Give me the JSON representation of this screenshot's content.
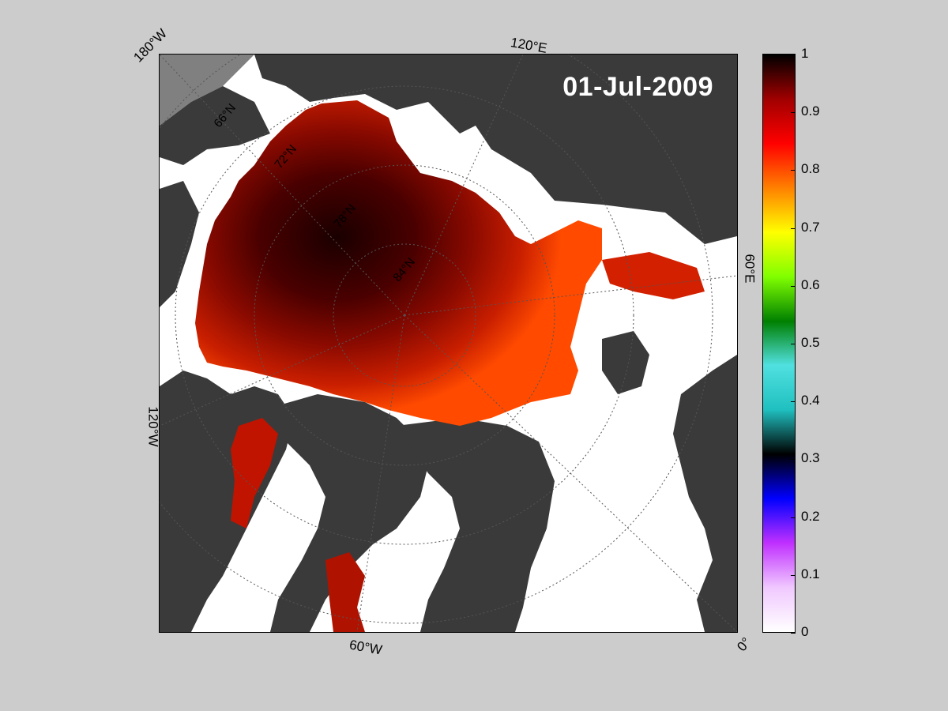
{
  "map": {
    "date_label": "01-Jul-2009",
    "edge_labels": {
      "lon_180W": "180°W",
      "lon_120E": "120°E",
      "lon_60E": "60°E",
      "lon_120W": "120°W",
      "lon_60W": "60°W",
      "lon_0": "0°"
    },
    "lat_labels": {
      "lat_66N": "66°N",
      "lat_72N": "72°N",
      "lat_78N": "78°N",
      "lat_84N": "84°N"
    },
    "colors": {
      "land": "#3a3a3a",
      "outside_grid": "#808080",
      "open_water": "#ffffff",
      "frame": "#000000"
    }
  },
  "colorbar": {
    "min": 0,
    "max": 1,
    "ticks": [
      "0",
      "0.1",
      "0.2",
      "0.3",
      "0.4",
      "0.5",
      "0.6",
      "0.7",
      "0.8",
      "0.9",
      "1"
    ],
    "colormap": [
      "#ffffff",
      "#f0c8ff",
      "#c030ff",
      "#0000ff",
      "#000000",
      "#20c0c0",
      "#50e0e0",
      "#008000",
      "#80ff00",
      "#ffff00",
      "#ff8000",
      "#ff0000",
      "#a00000",
      "#000000"
    ]
  }
}
